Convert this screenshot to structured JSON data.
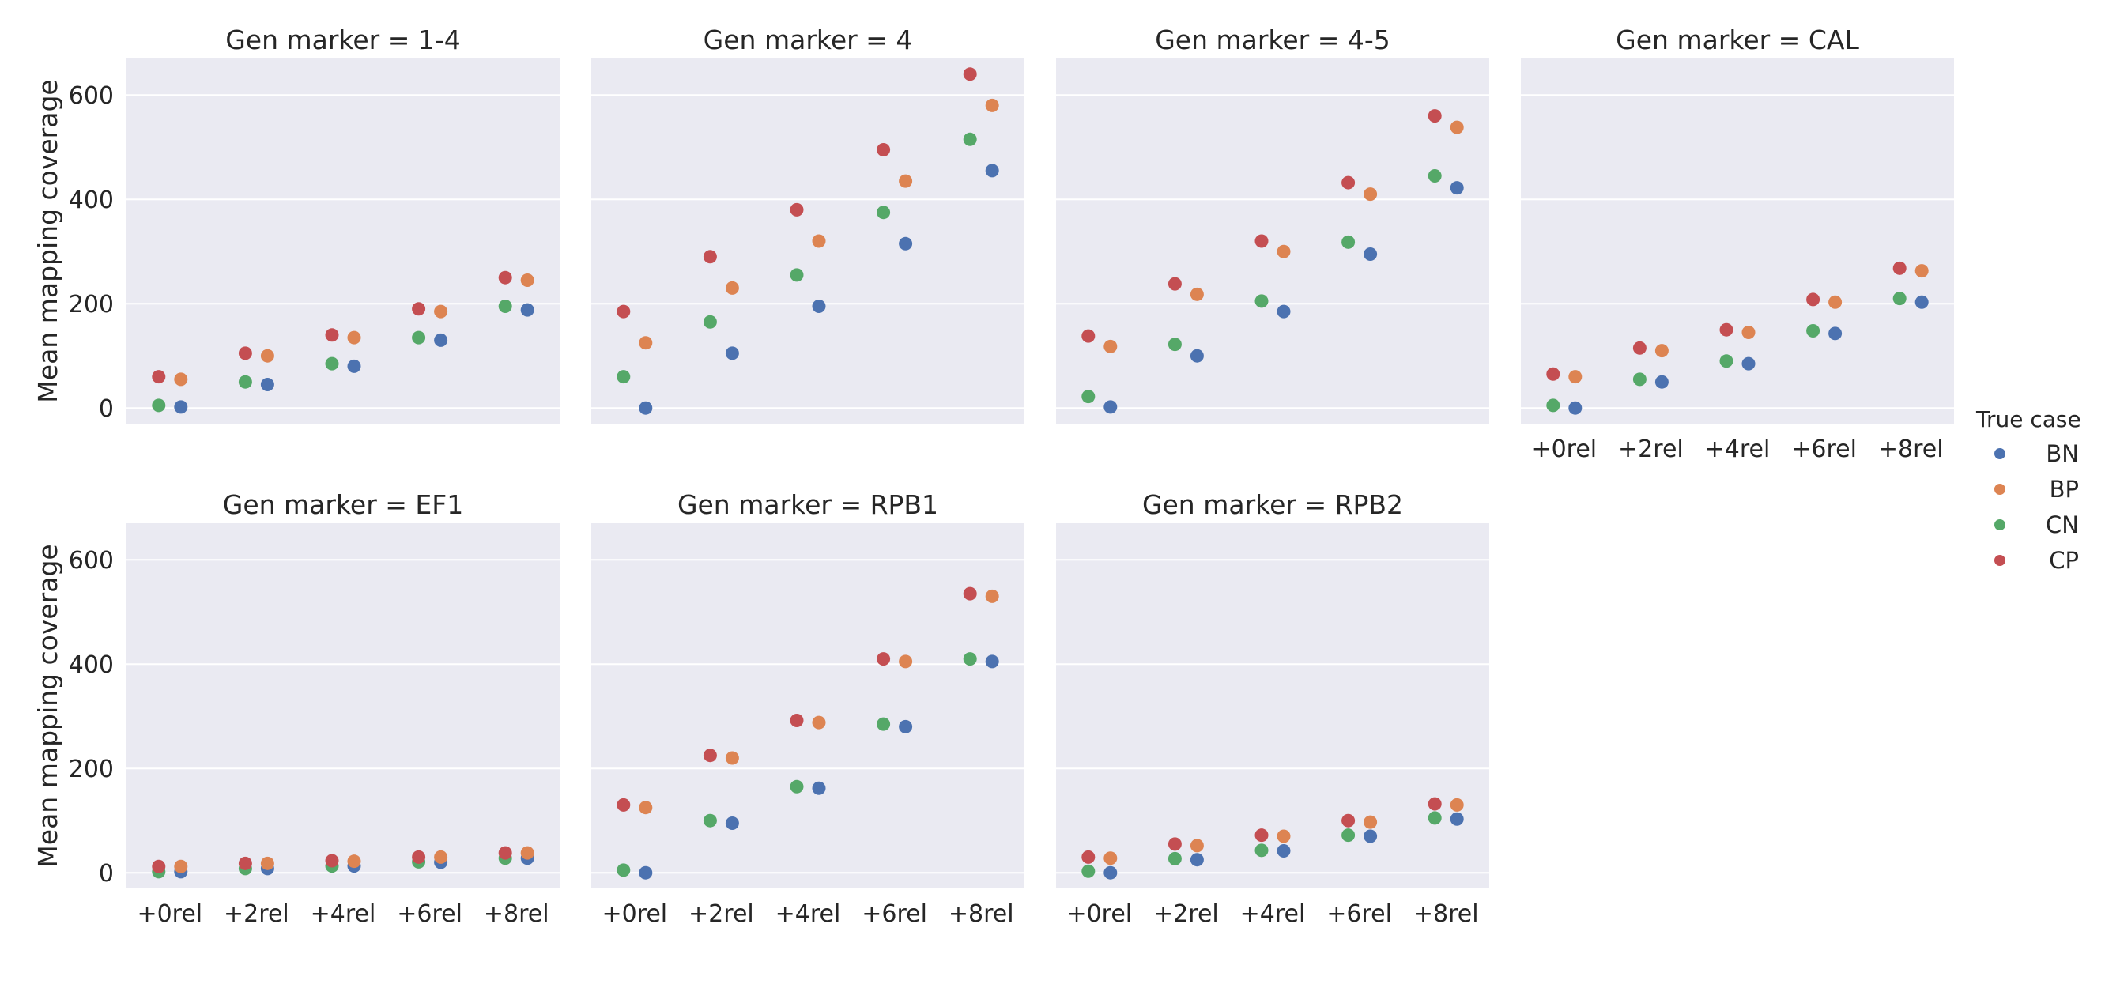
{
  "chart_data": {
    "type": "scatter",
    "ylabel": "Mean mapping coverage",
    "categories": [
      "+0rel",
      "+2rel",
      "+4rel",
      "+6rel",
      "+8rel"
    ],
    "yticks": [
      0,
      200,
      400,
      600
    ],
    "ylim": [
      -30,
      670
    ],
    "grid": true,
    "hue_order": [
      "BN",
      "BP",
      "CN",
      "CP"
    ],
    "colors": {
      "BN": "#4c72b0",
      "BP": "#dd8452",
      "CN": "#55a868",
      "CP": "#c44e52"
    },
    "legend": {
      "title": "True case",
      "labels": [
        "BN",
        "BP",
        "CN",
        "CP"
      ],
      "placement": "right"
    },
    "panels": [
      {
        "title": "Gen marker = 1-4",
        "series": [
          {
            "name": "BN",
            "values": [
              2,
              45,
              80,
              130,
              188
            ]
          },
          {
            "name": "BP",
            "values": [
              55,
              100,
              135,
              185,
              245
            ]
          },
          {
            "name": "CN",
            "values": [
              5,
              50,
              85,
              135,
              195
            ]
          },
          {
            "name": "CP",
            "values": [
              60,
              105,
              140,
              190,
              250
            ]
          }
        ]
      },
      {
        "title": "Gen marker = 4",
        "series": [
          {
            "name": "BN",
            "values": [
              0,
              105,
              195,
              315,
              455
            ]
          },
          {
            "name": "BP",
            "values": [
              125,
              230,
              320,
              435,
              580
            ]
          },
          {
            "name": "CN",
            "values": [
              60,
              165,
              255,
              375,
              515
            ]
          },
          {
            "name": "CP",
            "values": [
              185,
              290,
              380,
              495,
              640
            ]
          }
        ]
      },
      {
        "title": "Gen marker = 4-5",
        "series": [
          {
            "name": "BN",
            "values": [
              2,
              100,
              185,
              295,
              422
            ]
          },
          {
            "name": "BP",
            "values": [
              118,
              218,
              300,
              410,
              538
            ]
          },
          {
            "name": "CN",
            "values": [
              22,
              122,
              205,
              318,
              445
            ]
          },
          {
            "name": "CP",
            "values": [
              138,
              238,
              320,
              432,
              560
            ]
          }
        ]
      },
      {
        "title": "Gen marker = CAL",
        "series": [
          {
            "name": "BN",
            "values": [
              0,
              50,
              85,
              143,
              203
            ]
          },
          {
            "name": "BP",
            "values": [
              60,
              110,
              145,
              203,
              263
            ]
          },
          {
            "name": "CN",
            "values": [
              5,
              55,
              90,
              148,
              210
            ]
          },
          {
            "name": "CP",
            "values": [
              65,
              115,
              150,
              208,
              268
            ]
          }
        ]
      },
      {
        "title": "Gen marker = EF1",
        "series": [
          {
            "name": "BN",
            "values": [
              2,
              8,
              13,
              20,
              28
            ]
          },
          {
            "name": "BP",
            "values": [
              12,
              18,
              22,
              30,
              38
            ]
          },
          {
            "name": "CN",
            "values": [
              2,
              8,
              13,
              21,
              28
            ]
          },
          {
            "name": "CP",
            "values": [
              12,
              18,
              23,
              30,
              38
            ]
          }
        ]
      },
      {
        "title": "Gen marker = RPB1",
        "series": [
          {
            "name": "BN",
            "values": [
              0,
              95,
              162,
              280,
              405
            ]
          },
          {
            "name": "BP",
            "values": [
              125,
              220,
              288,
              405,
              530
            ]
          },
          {
            "name": "CN",
            "values": [
              5,
              100,
              165,
              285,
              410
            ]
          },
          {
            "name": "CP",
            "values": [
              130,
              225,
              292,
              410,
              535
            ]
          }
        ]
      },
      {
        "title": "Gen marker = RPB2",
        "series": [
          {
            "name": "BN",
            "values": [
              0,
              25,
              42,
              70,
              103
            ]
          },
          {
            "name": "BP",
            "values": [
              28,
              52,
              70,
              97,
              130
            ]
          },
          {
            "name": "CN",
            "values": [
              3,
              27,
              43,
              72,
              105
            ]
          },
          {
            "name": "CP",
            "values": [
              30,
              55,
              72,
              100,
              132
            ]
          }
        ]
      }
    ]
  }
}
